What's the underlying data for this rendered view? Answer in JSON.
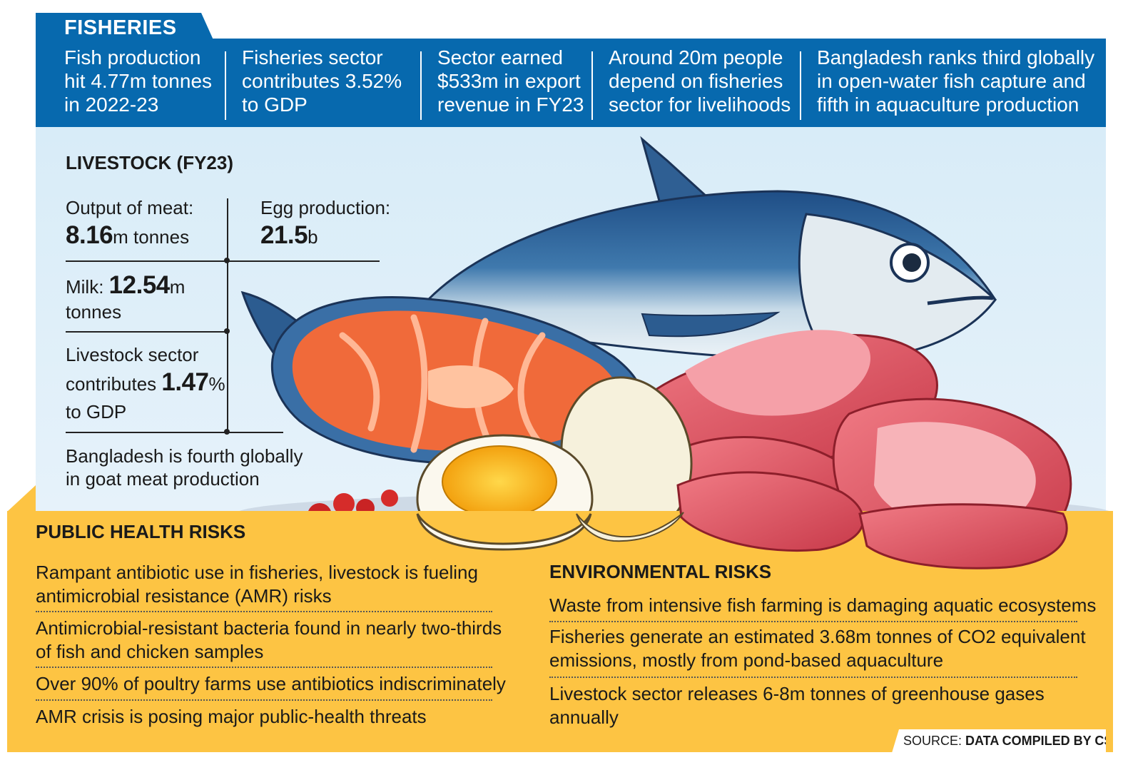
{
  "fisheries": {
    "title": "FISHERIES",
    "facts": [
      {
        "lines": [
          "Fish production",
          "hit 4.77m tonnes",
          "in 2022-23"
        ]
      },
      {
        "lines": [
          "Fisheries sector",
          "contributes 3.52%",
          "to GDP"
        ]
      },
      {
        "lines": [
          "Sector earned",
          "$533m in export",
          "revenue in FY23"
        ]
      },
      {
        "lines": [
          "Around 20m people",
          "depend on fisheries",
          "sector for livelihoods"
        ]
      },
      {
        "lines": [
          "Bangladesh ranks third globally",
          "in open-water fish capture and",
          "fifth in aquaculture production"
        ]
      }
    ]
  },
  "livestock": {
    "title": "LIVESTOCK (FY23)",
    "meat": {
      "label": "Output of meat:",
      "value": "8.16",
      "unit": "m tonnes"
    },
    "egg": {
      "label": "Egg production:",
      "value": "21.5",
      "unit": "b"
    },
    "milk": {
      "label": "Milk: ",
      "value": "12.54",
      "unit": "m",
      "unit2": "tonnes"
    },
    "gdp": {
      "line1": "Livestock sector",
      "line2_pre": "contributes ",
      "value": "1.47",
      "unit": "%",
      "line3": "to GDP"
    },
    "goat": {
      "line1": "Bangladesh is fourth globally",
      "line2": "in goat meat production"
    }
  },
  "public_health": {
    "title": "PUBLIC HEALTH RISKS",
    "items": [
      {
        "lines": [
          "Rampant antibiotic use in fisheries, livestock is fueling",
          "antimicrobial resistance (AMR) risks"
        ]
      },
      {
        "lines": [
          "Antimicrobial-resistant bacteria found in nearly two-thirds",
          "of fish and chicken samples"
        ]
      },
      {
        "lines": [
          "Over 90% of poultry farms use antibiotics indiscriminately"
        ]
      },
      {
        "lines": [
          "AMR crisis is posing major public-health threats"
        ]
      }
    ]
  },
  "environmental": {
    "title": "ENVIRONMENTAL RISKS",
    "items": [
      {
        "lines": [
          "Waste from intensive fish farming is damaging aquatic ecosystems"
        ]
      },
      {
        "lines": [
          "Fisheries generate an estimated 3.68m tonnes of CO2 equivalent",
          "emissions, mostly from pond-based aquaculture"
        ]
      },
      {
        "lines": [
          "Livestock sector releases 6-8m tonnes of greenhouse gases",
          "annually"
        ]
      }
    ]
  },
  "source": {
    "label": "SOURCE: ",
    "value": "DATA COMPILED BY CSR"
  },
  "colors": {
    "fisheries_blue": "#0769ae",
    "livestock_bg": "#dcedf8",
    "risk_yellow": "#fdc443"
  },
  "illustration_icons": [
    "fish-icon",
    "salmon-steak-icon",
    "boiled-egg-icon",
    "raw-meat-icon",
    "berries-icon"
  ]
}
